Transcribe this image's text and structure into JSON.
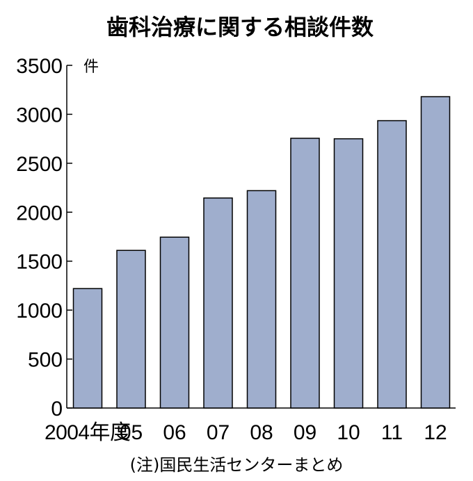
{
  "chart_data": {
    "type": "bar",
    "title": "歯科治療に関する相談件数",
    "unit": "件",
    "categories": [
      "2004年度",
      "05",
      "06",
      "07",
      "08",
      "09",
      "10",
      "11",
      "12"
    ],
    "values": [
      1220,
      1610,
      1745,
      2145,
      2220,
      2755,
      2750,
      2935,
      3180
    ],
    "ylim": [
      0,
      3500
    ],
    "yticks": [
      0,
      500,
      1000,
      1500,
      2000,
      2500,
      3000,
      3500
    ],
    "grid": false,
    "note": "(注)国民生活センターまとめ",
    "colors": {
      "bar": "#9faecd",
      "outline": "#000000"
    }
  }
}
